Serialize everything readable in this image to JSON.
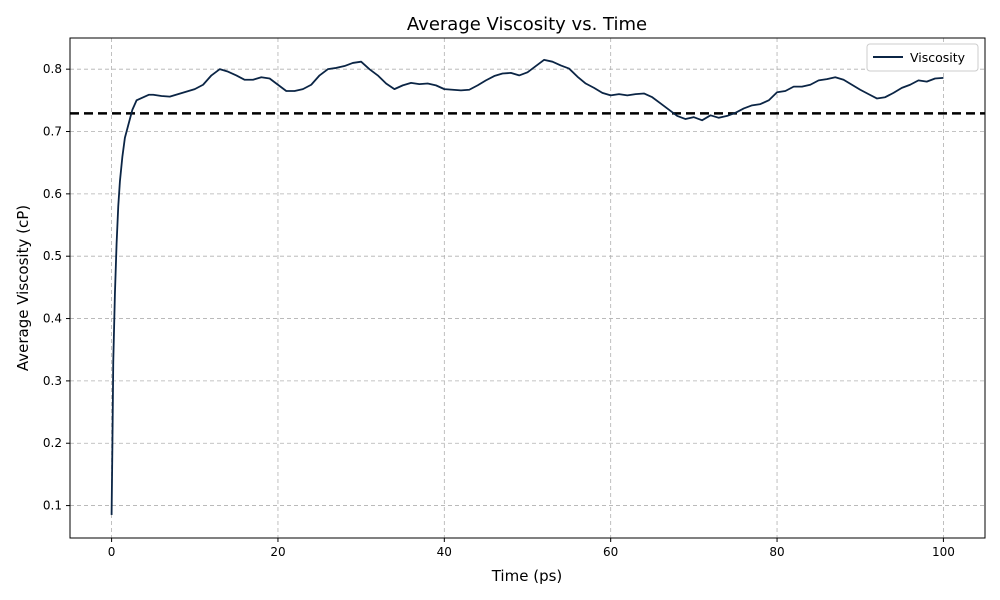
{
  "chart_data": {
    "type": "line",
    "title": "Average Viscosity vs. Time",
    "xlabel": "Time (ps)",
    "ylabel": "Average Viscosity (cP)",
    "xlim": [
      -5,
      105
    ],
    "ylim": [
      0.048,
      0.85
    ],
    "x_ticks": [
      0,
      20,
      40,
      60,
      80,
      100
    ],
    "y_ticks": [
      0.1,
      0.2,
      0.3,
      0.4,
      0.5,
      0.6,
      0.7,
      0.8
    ],
    "grid": true,
    "legend_position": "top-right",
    "series": [
      {
        "name": "Viscosity",
        "color": "#0b2545",
        "x": [
          0,
          0.1,
          0.2,
          0.4,
          0.6,
          0.8,
          1,
          1.3,
          1.6,
          2,
          2.5,
          3,
          3.5,
          4,
          4.5,
          5,
          6,
          7,
          8,
          9,
          10,
          11,
          12,
          13,
          14,
          15,
          16,
          17,
          18,
          19,
          20,
          21,
          22,
          23,
          24,
          25,
          26,
          27,
          28,
          29,
          30,
          31,
          32,
          33,
          34,
          35,
          36,
          37,
          38,
          39,
          40,
          41,
          42,
          43,
          44,
          45,
          46,
          47,
          48,
          49,
          50,
          51,
          52,
          53,
          54,
          55,
          56,
          57,
          58,
          59,
          60,
          61,
          62,
          63,
          64,
          65,
          66,
          67,
          68,
          69,
          70,
          71,
          72,
          73,
          74,
          75,
          76,
          77,
          78,
          79,
          80,
          81,
          82,
          83,
          84,
          85,
          86,
          87,
          88,
          89,
          90,
          91,
          92,
          93,
          94,
          95,
          96,
          97,
          98,
          99,
          100
        ],
        "values": [
          0.085,
          0.2,
          0.33,
          0.44,
          0.52,
          0.58,
          0.62,
          0.66,
          0.69,
          0.71,
          0.735,
          0.75,
          0.753,
          0.756,
          0.759,
          0.759,
          0.757,
          0.756,
          0.76,
          0.764,
          0.768,
          0.775,
          0.79,
          0.8,
          0.796,
          0.79,
          0.783,
          0.783,
          0.787,
          0.785,
          0.775,
          0.765,
          0.765,
          0.768,
          0.775,
          0.79,
          0.8,
          0.802,
          0.805,
          0.81,
          0.812,
          0.8,
          0.79,
          0.777,
          0.768,
          0.774,
          0.778,
          0.776,
          0.777,
          0.774,
          0.768,
          0.767,
          0.766,
          0.767,
          0.774,
          0.782,
          0.789,
          0.793,
          0.794,
          0.79,
          0.795,
          0.805,
          0.815,
          0.812,
          0.806,
          0.801,
          0.788,
          0.777,
          0.77,
          0.762,
          0.758,
          0.76,
          0.758,
          0.76,
          0.761,
          0.755,
          0.745,
          0.735,
          0.725,
          0.72,
          0.723,
          0.718,
          0.726,
          0.722,
          0.725,
          0.73,
          0.737,
          0.742,
          0.744,
          0.75,
          0.763,
          0.765,
          0.772,
          0.772,
          0.775,
          0.782,
          0.784,
          0.787,
          0.783,
          0.775,
          0.767,
          0.76,
          0.753,
          0.755,
          0.762,
          0.77,
          0.775,
          0.782,
          0.78,
          0.785,
          0.786
        ]
      }
    ],
    "reference_line": {
      "y": 0.729,
      "style": "dashed",
      "color": "#000000"
    }
  }
}
